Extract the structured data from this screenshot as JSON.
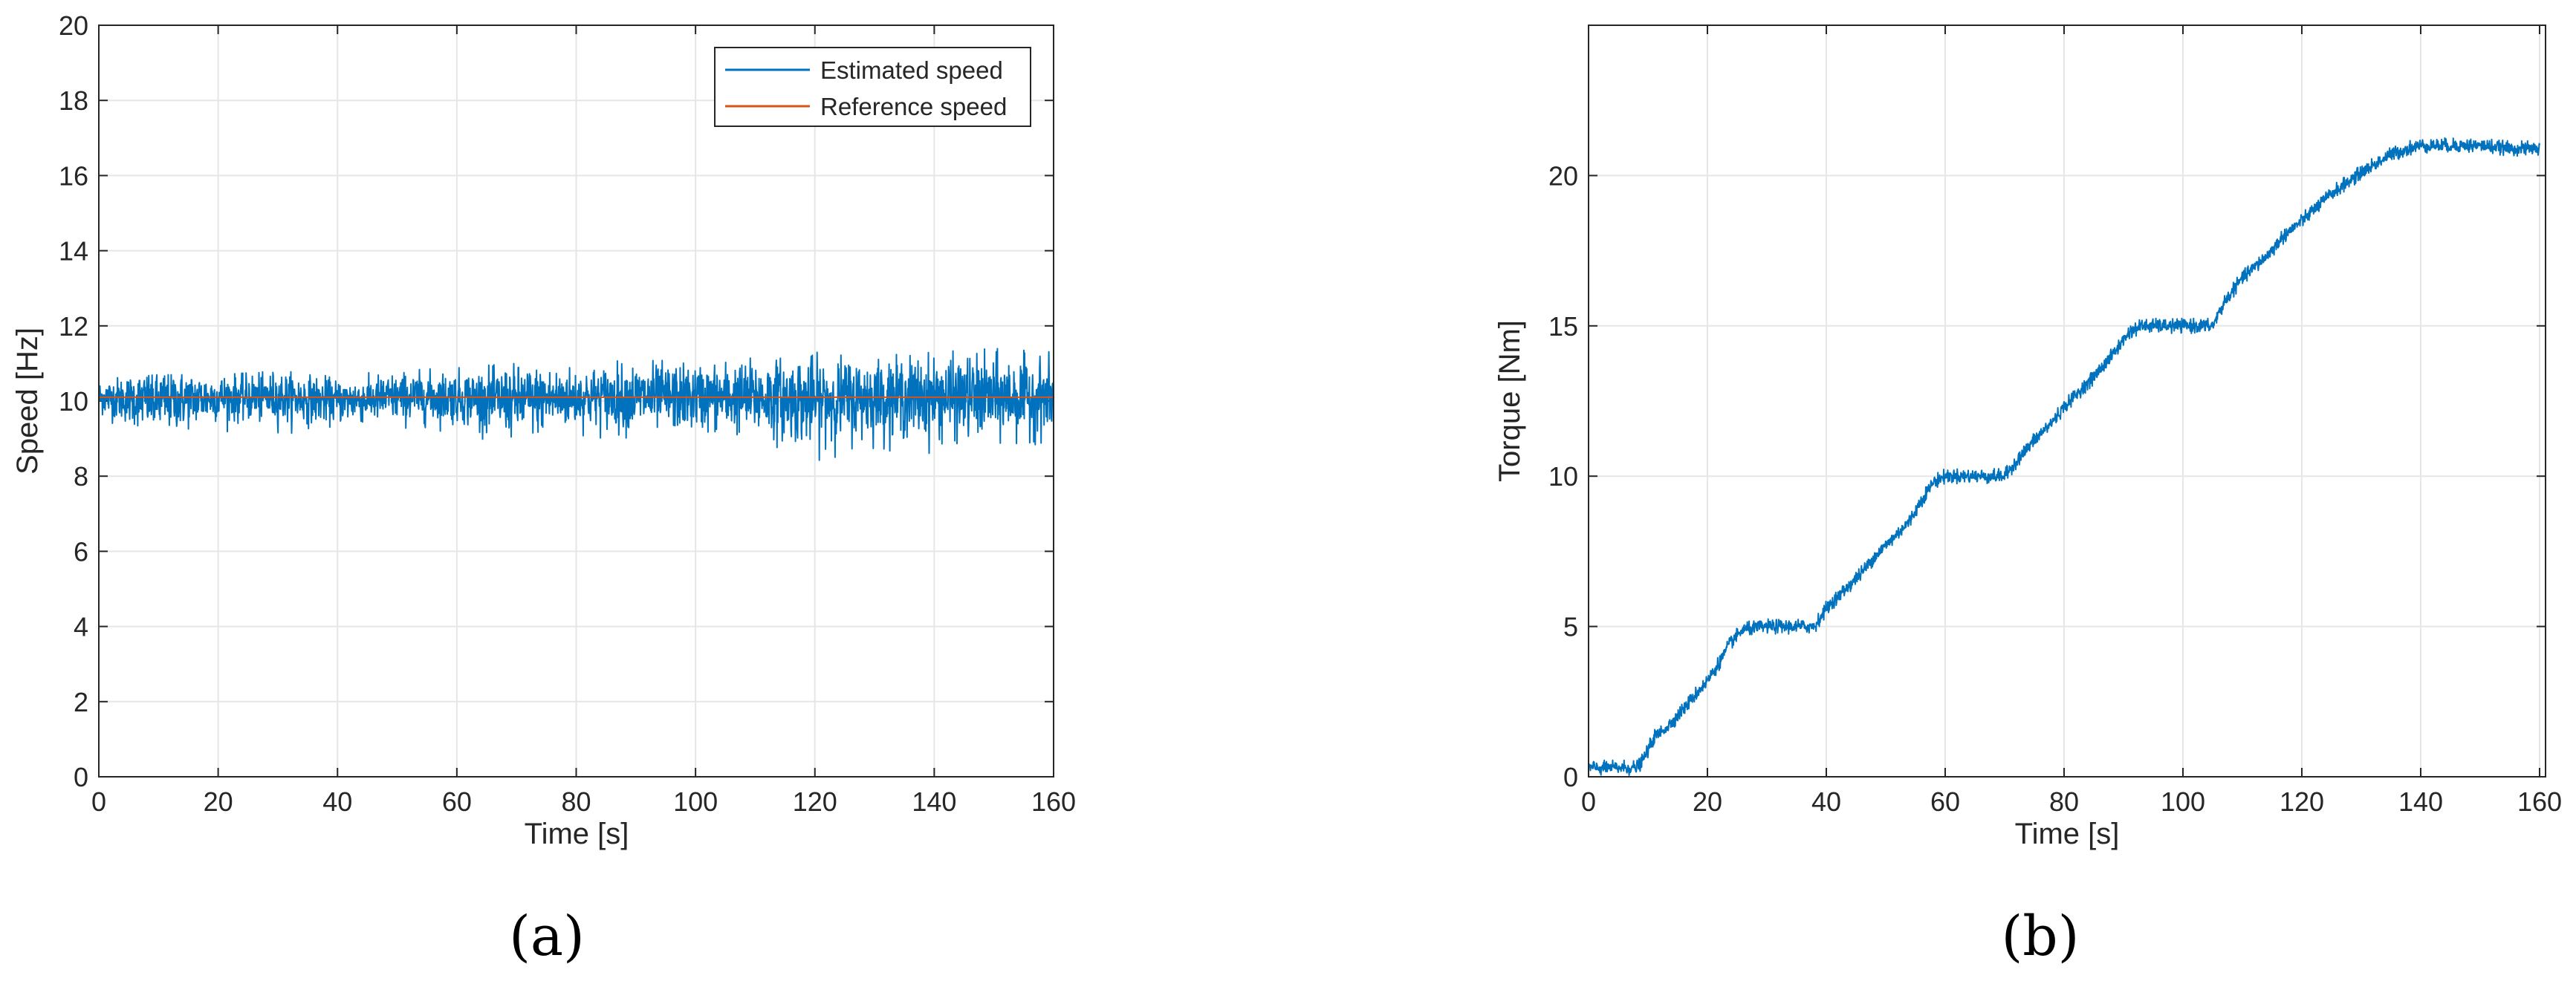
{
  "chart_data": [
    {
      "type": "line",
      "panel_label": "(a)",
      "xlabel": "Time [s]",
      "ylabel": "Speed [Hz]",
      "xlim": [
        0,
        160
      ],
      "ylim": [
        0,
        20
      ],
      "xticks": [
        0,
        20,
        40,
        60,
        80,
        100,
        120,
        140,
        160
      ],
      "yticks": [
        0,
        2,
        4,
        6,
        8,
        10,
        12,
        14,
        16,
        18,
        20
      ],
      "grid": true,
      "legend_position": "top-right",
      "series": [
        {
          "name": "Estimated speed",
          "color": "#0072BD",
          "x": [
            0,
            10,
            20,
            30,
            40,
            50,
            60,
            70,
            80,
            90,
            100,
            110,
            120,
            130,
            140,
            150,
            160
          ],
          "y": [
            10.1,
            10.0,
            10.1,
            10.1,
            10.0,
            10.1,
            10.1,
            10.0,
            10.1,
            10.1,
            10.1,
            10.1,
            10.0,
            10.1,
            10.1,
            10.1,
            10.1
          ],
          "noise_band": [
            [
              0,
              9.5,
              10.6
            ],
            [
              10,
              8.6,
              10.7
            ],
            [
              20,
              9.2,
              10.7
            ],
            [
              30,
              9.1,
              10.8
            ],
            [
              40,
              9.3,
              10.7
            ],
            [
              50,
              9.2,
              10.8
            ],
            [
              60,
              9.2,
              10.9
            ],
            [
              70,
              8.7,
              11.0
            ],
            [
              80,
              9.1,
              11.0
            ],
            [
              90,
              8.9,
              11.1
            ],
            [
              100,
              9.0,
              11.1
            ],
            [
              110,
              8.9,
              11.3
            ],
            [
              120,
              8.4,
              11.3
            ],
            [
              130,
              8.7,
              11.2
            ],
            [
              140,
              8.6,
              11.3
            ],
            [
              150,
              8.7,
              11.4
            ],
            [
              160,
              8.9,
              11.3
            ]
          ]
        },
        {
          "name": "Reference speed",
          "color": "#D95319",
          "x": [
            0,
            160
          ],
          "y": [
            10.1,
            10.1
          ]
        }
      ]
    },
    {
      "type": "line",
      "panel_label": "(b)",
      "xlabel": "Time [s]",
      "ylabel": "Torque [Nm]",
      "xlim": [
        0,
        161
      ],
      "ylim": [
        0,
        25
      ],
      "xticks": [
        0,
        20,
        40,
        60,
        80,
        100,
        120,
        140,
        160
      ],
      "yticks": [
        0,
        5,
        10,
        15,
        20
      ],
      "grid": true,
      "series": [
        {
          "color": "#0072BD",
          "x": [
            0,
            2,
            5,
            8,
            9,
            11,
            14,
            17,
            20,
            22,
            24,
            26,
            30,
            35,
            38,
            40,
            43,
            46,
            48,
            51,
            54,
            56,
            58,
            60,
            65,
            70,
            72,
            75,
            78,
            80,
            85,
            88,
            91,
            93,
            95,
            100,
            105,
            107,
            110,
            114,
            117,
            120,
            125,
            130,
            135,
            138,
            140,
            145,
            150,
            155,
            160
          ],
          "y": [
            0.3,
            0.3,
            0.3,
            0.3,
            0.5,
            1.3,
            1.8,
            2.5,
            3.2,
            3.8,
            4.5,
            4.9,
            5.0,
            5.0,
            5.0,
            5.6,
            6.2,
            6.8,
            7.3,
            7.9,
            8.5,
            9.2,
            9.8,
            10.0,
            10.0,
            10.0,
            10.5,
            11.2,
            11.8,
            12.3,
            13.3,
            14.0,
            14.8,
            15.0,
            15.0,
            15.0,
            15.0,
            15.8,
            16.6,
            17.3,
            18.0,
            18.5,
            19.4,
            20.1,
            20.7,
            20.9,
            21.0,
            21.0,
            21.0,
            20.9,
            20.9
          ],
          "noise_amp": 0.25
        }
      ]
    }
  ]
}
